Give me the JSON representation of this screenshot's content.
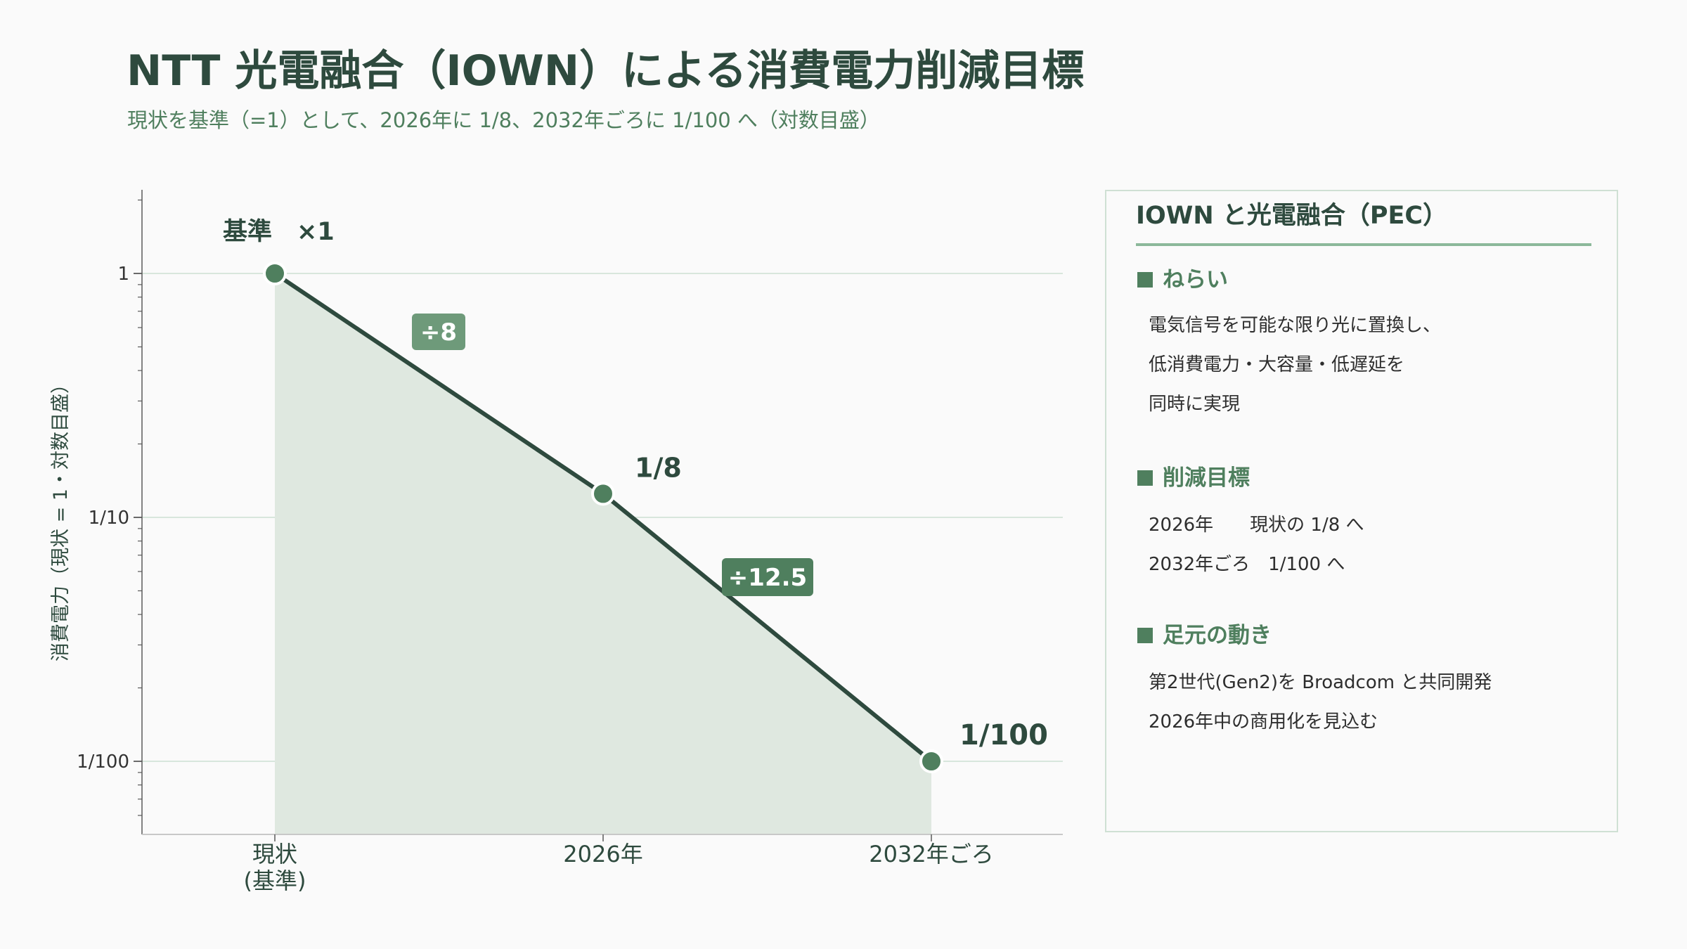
{
  "title": "NTT 光電融合（IOWN）による消費電力削減目標",
  "subtitle": "現状を基準（=1）として、2026年に 1/8、2032年ごろに 1/100 へ（対数目盛）",
  "colors": {
    "line": "#2e4a3e",
    "fill": "#dfe8e0",
    "point": "#4f7f5e",
    "badge": "#4f7f5e",
    "badge_light": "#6e9a7a",
    "grid": "#d8e6dc"
  },
  "chart_data": {
    "type": "line",
    "scale": "log",
    "ylabel": "消費電力（現状 = 1・対数目盛）",
    "ylim": [
      0.005,
      2
    ],
    "yticks": [
      {
        "value": 1,
        "label": "1"
      },
      {
        "value": 0.1,
        "label": "1/10"
      },
      {
        "value": 0.01,
        "label": "1/100"
      }
    ],
    "categories": [
      "現状\n(基準)",
      "2026年",
      "2032年ごろ"
    ],
    "values": [
      1,
      0.125,
      0.01
    ],
    "point_labels": [
      "基準　×1",
      "1/8",
      "1/100"
    ],
    "step_labels": [
      "÷8",
      "÷12.5"
    ],
    "grid": true,
    "area_fill": true
  },
  "panel": {
    "title": "IOWN と光電融合（PEC）",
    "sections": [
      {
        "heading": "ねらい",
        "lines": [
          "電気信号を可能な限り光に置換し、",
          "低消費電力・大容量・低遅延を",
          "同時に実現"
        ]
      },
      {
        "heading": "削減目標",
        "lines": [
          "2026年　　現状の 1/8 へ",
          "2032年ごろ　1/100 へ"
        ]
      },
      {
        "heading": "足元の動き",
        "lines": [
          "第2世代(Gen2)を Broadcom と共同開発",
          "2026年中の商用化を見込む"
        ]
      }
    ]
  }
}
